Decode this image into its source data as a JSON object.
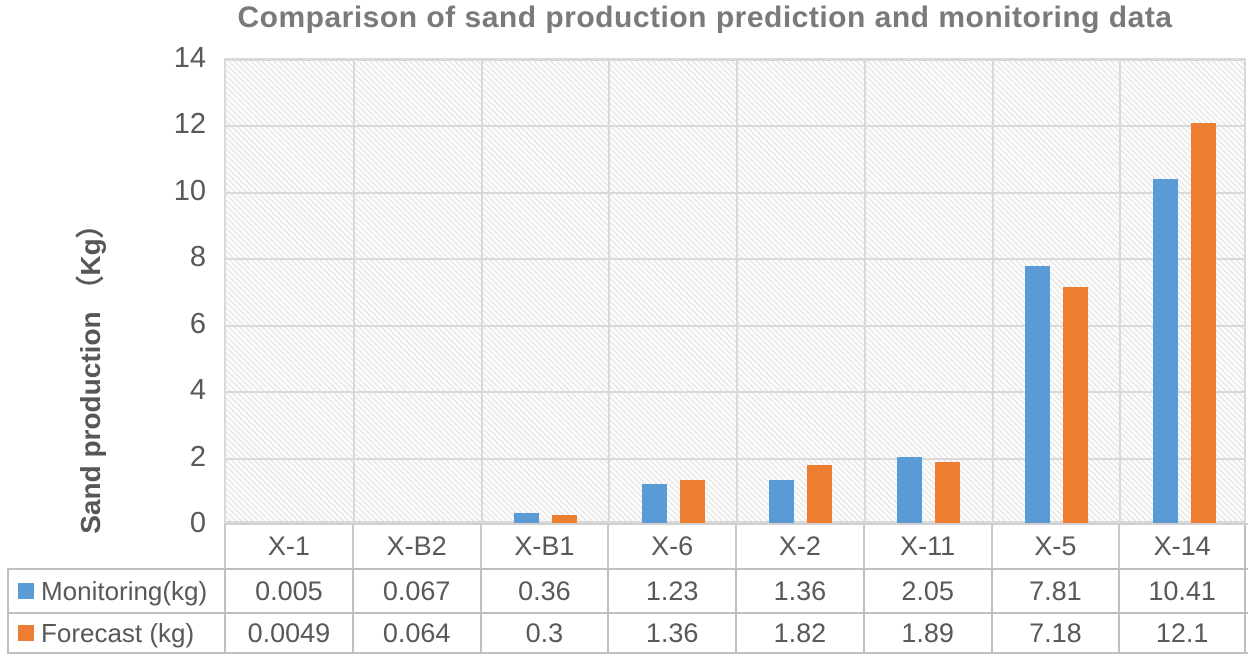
{
  "title": "Comparison of sand production prediction and monitoring data",
  "y_axis": {
    "label": "Sand production （Kg）",
    "ticks": [
      14,
      12,
      10,
      8,
      6,
      4,
      2,
      0
    ],
    "min": 0,
    "max": 14
  },
  "chart_data": {
    "type": "bar",
    "title": "Comparison of sand production prediction and monitoring data",
    "xlabel": "",
    "ylabel": "Sand production （Kg）",
    "ylim": [
      0,
      14
    ],
    "grid": true,
    "legend_position": "table-left",
    "categories": [
      "X-1",
      "X-B2",
      "X-B1",
      "X-6",
      "X-2",
      "X-11",
      "X-5",
      "X-14"
    ],
    "series": [
      {
        "name": "Monitoring(kg)",
        "color": "#5B9BD5",
        "values": [
          0.005,
          0.067,
          0.36,
          1.23,
          1.36,
          2.05,
          7.81,
          10.41
        ],
        "value_labels": [
          "0.005",
          "0.067",
          "0.36",
          "1.23",
          "1.36",
          "2.05",
          "7.81",
          "10.41"
        ]
      },
      {
        "name": "Forecast (kg)",
        "color": "#ED7D31",
        "values": [
          0.0049,
          0.064,
          0.3,
          1.36,
          1.82,
          1.89,
          7.18,
          12.1
        ],
        "value_labels": [
          "0.0049",
          "0.064",
          "0.3",
          "1.36",
          "1.82",
          "1.89",
          "7.18",
          "12.1"
        ]
      }
    ]
  },
  "colors": {
    "monitoring_bar": "#5B9BD5",
    "forecast_bar": "#ED7D31",
    "gridline": "#d9d9d9",
    "hatch": "#ebebeb",
    "table_border": "#bfbfbf",
    "text": "#595959",
    "title_text": "#7a7a7a"
  }
}
